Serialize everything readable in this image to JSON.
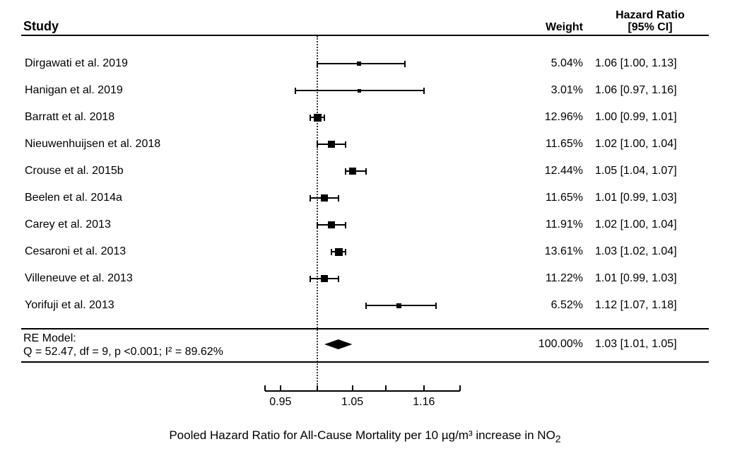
{
  "chart_data": {
    "type": "forest",
    "title": "",
    "x_scale": "log",
    "reference_line": 1.0,
    "axis_range": [
      0.93,
      1.22
    ],
    "axis_ticks": [
      0.95,
      1.0,
      1.05,
      1.1,
      1.16
    ],
    "axis_tick_labels": [
      "0.95",
      "1.05",
      "1.16"
    ],
    "axis_labeled_values": [
      0.95,
      1.05,
      1.16
    ],
    "columns": {
      "study": "Study",
      "weight": "Weight",
      "hr_line1": "Hazard Ratio",
      "hr_line2": "[95% CI]"
    },
    "studies": [
      {
        "label": "Dirgawati et al. 2019",
        "weight": "5.04%",
        "weight_pct": 5.04,
        "est": 1.06,
        "ci_low": 1.0,
        "ci_high": 1.13,
        "hr_text": "1.06 [1.00, 1.13]"
      },
      {
        "label": "Hanigan et al. 2019",
        "weight": "3.01%",
        "weight_pct": 3.01,
        "est": 1.06,
        "ci_low": 0.97,
        "ci_high": 1.16,
        "hr_text": "1.06 [0.97, 1.16]"
      },
      {
        "label": "Barratt et al. 2018",
        "weight": "12.96%",
        "weight_pct": 12.96,
        "est": 1.0,
        "ci_low": 0.99,
        "ci_high": 1.01,
        "hr_text": "1.00 [0.99, 1.01]"
      },
      {
        "label": "Nieuwenhuijsen et al. 2018",
        "weight": "11.65%",
        "weight_pct": 11.65,
        "est": 1.02,
        "ci_low": 1.0,
        "ci_high": 1.04,
        "hr_text": "1.02 [1.00, 1.04]"
      },
      {
        "label": "Crouse et al. 2015b",
        "weight": "12.44%",
        "weight_pct": 12.44,
        "est": 1.05,
        "ci_low": 1.04,
        "ci_high": 1.07,
        "hr_text": "1.05 [1.04, 1.07]"
      },
      {
        "label": "Beelen et al. 2014a",
        "weight": "11.65%",
        "weight_pct": 11.65,
        "est": 1.01,
        "ci_low": 0.99,
        "ci_high": 1.03,
        "hr_text": "1.01 [0.99, 1.03]"
      },
      {
        "label": "Carey et al. 2013",
        "weight": "11.91%",
        "weight_pct": 11.91,
        "est": 1.02,
        "ci_low": 1.0,
        "ci_high": 1.04,
        "hr_text": "1.02 [1.00, 1.04]"
      },
      {
        "label": "Cesaroni et al. 2013",
        "weight": "13.61%",
        "weight_pct": 13.61,
        "est": 1.03,
        "ci_low": 1.02,
        "ci_high": 1.04,
        "hr_text": "1.03 [1.02, 1.04]"
      },
      {
        "label": "Villeneuve et al. 2013",
        "weight": "11.22%",
        "weight_pct": 11.22,
        "est": 1.01,
        "ci_low": 0.99,
        "ci_high": 1.03,
        "hr_text": "1.01 [0.99, 1.03]"
      },
      {
        "label": "Yorifuji et al. 2013",
        "weight": "6.52%",
        "weight_pct": 6.52,
        "est": 1.12,
        "ci_low": 1.07,
        "ci_high": 1.18,
        "hr_text": "1.12 [1.07, 1.18]"
      }
    ],
    "summary": {
      "label_line1": "RE Model:",
      "label_line2": "Q = 52.47, df = 9, p <0.001; I² = 89.62%",
      "weight": "100.00%",
      "weight_pct": 100.0,
      "est": 1.03,
      "ci_low": 1.01,
      "ci_high": 1.05,
      "hr_text": "1.03 [1.01, 1.05]"
    },
    "caption_main": "Pooled Hazard Ratio for All-Cause Mortality per 10 µg/m³ increase in NO",
    "caption_sub": "2"
  }
}
